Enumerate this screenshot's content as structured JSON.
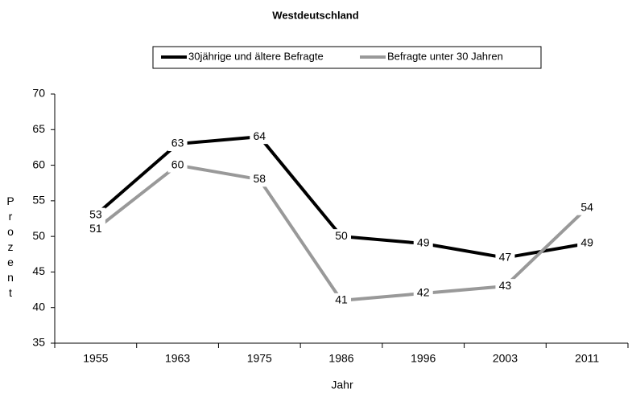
{
  "chart_data": {
    "type": "line",
    "title": "Westdeutschland",
    "x_label": "Jahr",
    "y_label": "Prozent",
    "categories": [
      "1955",
      "1963",
      "1975",
      "1986",
      "1996",
      "2003",
      "2011"
    ],
    "series": [
      {
        "name": "30jährige und ältere Befragte",
        "color": "#000000",
        "values": [
          53,
          63,
          64,
          50,
          49,
          47,
          49
        ]
      },
      {
        "name": "Befragte unter 30 Jahren",
        "color": "#999999",
        "values": [
          51,
          60,
          58,
          41,
          42,
          43,
          54
        ]
      }
    ],
    "ylim": [
      35,
      70
    ],
    "yticks": [
      35,
      40,
      45,
      50,
      55,
      60,
      65,
      70
    ],
    "legend": "top",
    "data_labels": true
  }
}
